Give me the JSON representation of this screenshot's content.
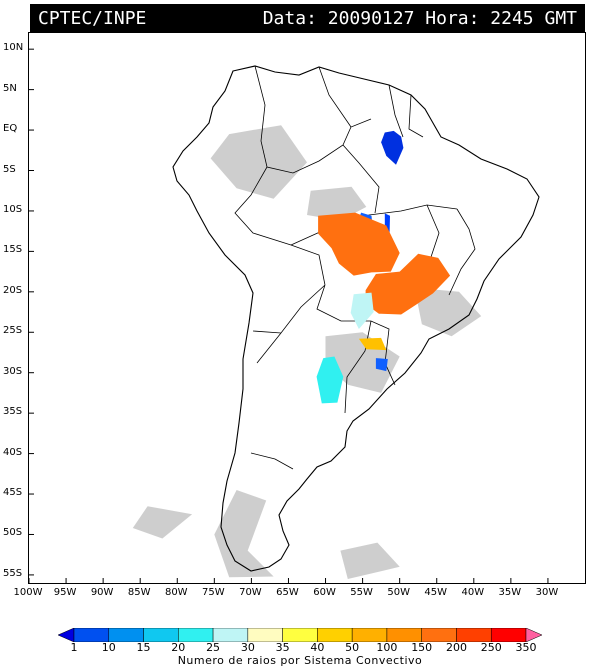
{
  "header": {
    "product": "CPTEC/INPE",
    "stamp": "Data: 20090127 Hora: 2245 GMT"
  },
  "map": {
    "lat_labels": [
      "10N",
      "5N",
      "EQ",
      "5S",
      "10S",
      "15S",
      "20S",
      "25S",
      "30S",
      "35S",
      "40S",
      "45S",
      "50S",
      "55S"
    ],
    "lat_values": [
      10,
      5,
      0,
      -5,
      -10,
      -15,
      -20,
      -25,
      -30,
      -35,
      -40,
      -45,
      -50,
      -55
    ],
    "lon_labels": [
      "100W",
      "95W",
      "90W",
      "85W",
      "80W",
      "75W",
      "70W",
      "65W",
      "60W",
      "55W",
      "50W",
      "45W",
      "40W",
      "35W",
      "30W"
    ],
    "lon_values": [
      -100,
      -95,
      -90,
      -85,
      -80,
      -75,
      -70,
      -65,
      -60,
      -55,
      -50,
      -45,
      -40,
      -35,
      -30
    ],
    "lon_range": [
      -100,
      -25
    ],
    "lat_range": [
      -56,
      12
    ],
    "colors": {
      "land_outline": "#000000",
      "cloud_gray": "#bdbdbd"
    },
    "lightning_regions": [
      {
        "name": "north-pará",
        "color": "#0030e0",
        "points": [
          [
            -52,
            -0.3
          ],
          [
            -50.8,
            -0.1
          ],
          [
            -49.8,
            -0.8
          ],
          [
            -49.5,
            -2.2
          ],
          [
            -50.5,
            -4.3
          ],
          [
            -51.8,
            -3.2
          ],
          [
            -52.5,
            -1.5
          ]
        ]
      },
      {
        "name": "central-brazil-blue",
        "color": "#1060ff",
        "points": [
          [
            -55.2,
            -10.2
          ],
          [
            -53.8,
            -10.6
          ],
          [
            -53.6,
            -12.6
          ],
          [
            -55,
            -12.4
          ],
          [
            -55.5,
            -11
          ]
        ]
      },
      {
        "name": "goias-blue",
        "color": "#0040ff",
        "points": [
          [
            -52,
            -10.3
          ],
          [
            -51.3,
            -10.6
          ],
          [
            -51.4,
            -14.2
          ],
          [
            -52,
            -14
          ]
        ]
      },
      {
        "name": "mato-grosso-orange",
        "color": "#ff7010",
        "points": [
          [
            -61,
            -10.6
          ],
          [
            -56,
            -10.2
          ],
          [
            -51.8,
            -11.8
          ],
          [
            -50,
            -15.2
          ],
          [
            -51.2,
            -17.5
          ],
          [
            -53.8,
            -17.6
          ],
          [
            -56.2,
            -18
          ],
          [
            -58.2,
            -16.5
          ],
          [
            -59.2,
            -14.6
          ],
          [
            -61,
            -12.8
          ]
        ]
      },
      {
        "name": "minas-orange",
        "color": "#ff7010",
        "points": [
          [
            -53.2,
            -17.8
          ],
          [
            -50,
            -17.5
          ],
          [
            -47.5,
            -15.3
          ],
          [
            -44.8,
            -15.8
          ],
          [
            -43.2,
            -18
          ],
          [
            -45.5,
            -20.2
          ],
          [
            -47.8,
            -21.6
          ],
          [
            -49.8,
            -22.8
          ],
          [
            -52.8,
            -22.7
          ],
          [
            -54.6,
            -21.5
          ],
          [
            -54.6,
            -19.8
          ]
        ]
      },
      {
        "name": "paraguay-cyan-light",
        "color": "#bff5f5",
        "points": [
          [
            -56.2,
            -20.3
          ],
          [
            -53.8,
            -20.1
          ],
          [
            -53.5,
            -22.5
          ],
          [
            -55.5,
            -24.6
          ],
          [
            -56.6,
            -22.6
          ]
        ]
      },
      {
        "name": "santa-catarina-yellow",
        "color": "#ffc000",
        "points": [
          [
            -55.5,
            -25.8
          ],
          [
            -52.5,
            -25.7
          ],
          [
            -51.8,
            -27.2
          ],
          [
            -54.5,
            -27.1
          ]
        ]
      },
      {
        "name": "argentina-cyan",
        "color": "#30f0f0",
        "points": [
          [
            -60.3,
            -28.2
          ],
          [
            -58.8,
            -28
          ],
          [
            -57.6,
            -30.5
          ],
          [
            -58.4,
            -33.7
          ],
          [
            -60.5,
            -33.8
          ],
          [
            -61.2,
            -30.5
          ]
        ]
      },
      {
        "name": "south-blue",
        "color": "#1060ff",
        "points": [
          [
            -53.2,
            -28.2
          ],
          [
            -51.6,
            -28.3
          ],
          [
            -51.8,
            -29.8
          ],
          [
            -53.2,
            -29.5
          ]
        ]
      }
    ],
    "cloud_regions": [
      [
        [
          -73,
          -0.5
        ],
        [
          -66,
          0.6
        ],
        [
          -62.5,
          -4
        ],
        [
          -67,
          -8.5
        ],
        [
          -72,
          -7.2
        ],
        [
          -75.5,
          -3.5
        ]
      ],
      [
        [
          -62,
          -7.5
        ],
        [
          -56.5,
          -7
        ],
        [
          -54.5,
          -9.5
        ],
        [
          -58,
          -11.2
        ],
        [
          -62.5,
          -10.5
        ]
      ],
      [
        [
          -48,
          -19.5
        ],
        [
          -42,
          -20
        ],
        [
          -39,
          -23
        ],
        [
          -43,
          -25.5
        ],
        [
          -47,
          -24
        ]
      ],
      [
        [
          -60,
          -25.5
        ],
        [
          -55,
          -25
        ],
        [
          -50,
          -28
        ],
        [
          -52.5,
          -32.5
        ],
        [
          -57,
          -31.5
        ],
        [
          -60,
          -29
        ]
      ],
      [
        [
          -72,
          -44.5
        ],
        [
          -68,
          -45.8
        ],
        [
          -70.5,
          -52
        ],
        [
          -67,
          -55.2
        ],
        [
          -73,
          -55.3
        ],
        [
          -75,
          -50
        ]
      ],
      [
        [
          -84,
          -46.5
        ],
        [
          -78,
          -47.5
        ],
        [
          -82,
          -50.5
        ],
        [
          -86,
          -49.2
        ]
      ],
      [
        [
          -58,
          -52
        ],
        [
          -53,
          -51
        ],
        [
          -50,
          -54
        ],
        [
          -57,
          -55.5
        ]
      ]
    ]
  },
  "colorbar": {
    "labels": [
      "1",
      "10",
      "15",
      "20",
      "25",
      "30",
      "35",
      "40",
      "50",
      "100",
      "150",
      "200",
      "250",
      "350"
    ],
    "colors": [
      "#0000e0",
      "#0050f0",
      "#0090f0",
      "#10c8f0",
      "#30f0f0",
      "#bff5f5",
      "#fffcc0",
      "#ffff40",
      "#ffd000",
      "#ffb000",
      "#ff9000",
      "#ff7010",
      "#ff4000",
      "#ff0000",
      "#ff60a0"
    ],
    "caption": "Numero de raios por Sistema Convectivo"
  }
}
